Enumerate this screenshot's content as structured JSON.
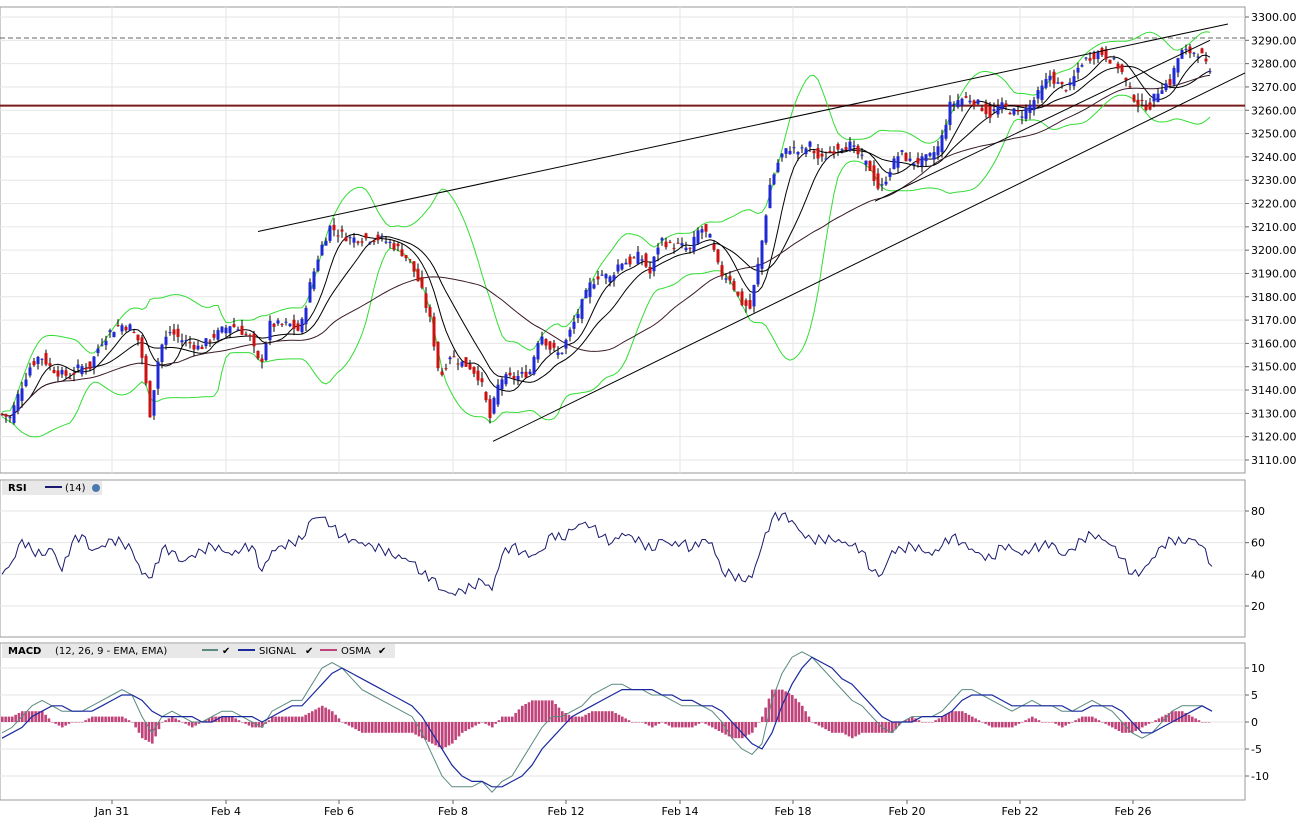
{
  "chart_data": [
    {
      "type": "candlestick",
      "panel": "price",
      "ylim": [
        3105,
        3300
      ],
      "y_ticks": [
        "3300.00",
        "3290.00",
        "3280.00",
        "3270.00",
        "3260.00",
        "3250.00",
        "3240.00",
        "3230.00",
        "3220.00",
        "3210.00",
        "3200.00",
        "3190.00",
        "3180.00",
        "3170.00",
        "3160.00",
        "3150.00",
        "3140.00",
        "3130.00",
        "3120.00",
        "3110.00"
      ],
      "x_ticks": [
        "Jan 31",
        "Feb 4",
        "Feb 6",
        "Feb 8",
        "Feb 12",
        "Feb 14",
        "Feb 18",
        "Feb 20",
        "Feb 22",
        "Feb 26"
      ],
      "close_path": [
        [
          0,
          3130
        ],
        [
          10,
          3128
        ],
        [
          20,
          3140
        ],
        [
          30,
          3150
        ],
        [
          40,
          3155
        ],
        [
          50,
          3150
        ],
        [
          60,
          3147
        ],
        [
          70,
          3146
        ],
        [
          80,
          3150
        ],
        [
          90,
          3150
        ],
        [
          100,
          3160
        ],
        [
          110,
          3165
        ],
        [
          120,
          3168
        ],
        [
          130,
          3167
        ],
        [
          140,
          3160
        ],
        [
          150,
          3130
        ],
        [
          160,
          3158
        ],
        [
          170,
          3165
        ],
        [
          180,
          3162
        ],
        [
          190,
          3160
        ],
        [
          200,
          3158
        ],
        [
          210,
          3162
        ],
        [
          220,
          3165
        ],
        [
          230,
          3168
        ],
        [
          240,
          3166
        ],
        [
          250,
          3162
        ],
        [
          260,
          3150
        ],
        [
          270,
          3168
        ],
        [
          280,
          3168
        ],
        [
          290,
          3168
        ],
        [
          300,
          3165
        ],
        [
          310,
          3185
        ],
        [
          320,
          3200
        ],
        [
          330,
          3210
        ],
        [
          340,
          3207
        ],
        [
          350,
          3205
        ],
        [
          360,
          3205
        ],
        [
          370,
          3205
        ],
        [
          380,
          3205
        ],
        [
          390,
          3203
        ],
        [
          400,
          3200
        ],
        [
          410,
          3195
        ],
        [
          420,
          3185
        ],
        [
          430,
          3170
        ],
        [
          440,
          3145
        ],
        [
          450,
          3155
        ],
        [
          460,
          3152
        ],
        [
          470,
          3150
        ],
        [
          480,
          3145
        ],
        [
          490,
          3128
        ],
        [
          500,
          3145
        ],
        [
          510,
          3145
        ],
        [
          520,
          3146
        ],
        [
          530,
          3148
        ],
        [
          540,
          3165
        ],
        [
          550,
          3158
        ],
        [
          560,
          3155
        ],
        [
          570,
          3165
        ],
        [
          580,
          3175
        ],
        [
          590,
          3185
        ],
        [
          600,
          3190
        ],
        [
          610,
          3188
        ],
        [
          620,
          3195
        ],
        [
          630,
          3195
        ],
        [
          640,
          3198
        ],
        [
          650,
          3190
        ],
        [
          660,
          3205
        ],
        [
          670,
          3202
        ],
        [
          680,
          3202
        ],
        [
          690,
          3200
        ],
        [
          700,
          3210
        ],
        [
          710,
          3205
        ],
        [
          720,
          3190
        ],
        [
          730,
          3188
        ],
        [
          740,
          3178
        ],
        [
          750,
          3175
        ],
        [
          760,
          3198
        ],
        [
          770,
          3228
        ],
        [
          780,
          3240
        ],
        [
          790,
          3244
        ],
        [
          800,
          3242
        ],
        [
          810,
          3245
        ],
        [
          820,
          3238
        ],
        [
          830,
          3242
        ],
        [
          840,
          3245
        ],
        [
          850,
          3245
        ],
        [
          860,
          3240
        ],
        [
          870,
          3235
        ],
        [
          880,
          3225
        ],
        [
          890,
          3235
        ],
        [
          900,
          3242
        ],
        [
          910,
          3238
        ],
        [
          920,
          3238
        ],
        [
          930,
          3240
        ],
        [
          940,
          3245
        ],
        [
          950,
          3262
        ],
        [
          960,
          3265
        ],
        [
          970,
          3265
        ],
        [
          980,
          3262
        ],
        [
          990,
          3258
        ],
        [
          1000,
          3262
        ],
        [
          1010,
          3260
        ],
        [
          1020,
          3258
        ],
        [
          1030,
          3262
        ],
        [
          1040,
          3268
        ],
        [
          1050,
          3275
        ],
        [
          1060,
          3270
        ],
        [
          1070,
          3270
        ],
        [
          1080,
          3280
        ],
        [
          1090,
          3283
        ],
        [
          1100,
          3285
        ],
        [
          1110,
          3282
        ],
        [
          1120,
          3278
        ],
        [
          1130,
          3268
        ],
        [
          1140,
          3262
        ],
        [
          1150,
          3262
        ],
        [
          1160,
          3270
        ],
        [
          1170,
          3272
        ],
        [
          1180,
          3285
        ],
        [
          1190,
          3285
        ],
        [
          1200,
          3285
        ],
        [
          1210,
          3275
        ]
      ],
      "horizontal_lines": [
        {
          "y": 3291,
          "style": "dashed",
          "color": "#666666"
        },
        {
          "y": 3262,
          "style": "solid",
          "color": "#7a1a1a"
        }
      ],
      "trend_lines": [
        {
          "from": [
            258,
            3208
          ],
          "to": [
            1228,
            3297
          ]
        },
        {
          "from": [
            493,
            3118
          ],
          "to": [
            1245,
            3276
          ]
        },
        {
          "from": [
            875,
            3221
          ],
          "to": [
            1210,
            3290
          ]
        }
      ],
      "colors": {
        "up": "#1f2ad6",
        "down": "#cc1111",
        "bollinger": "#33dd33",
        "ma": "#000000",
        "ma_long": "#3a1a2a"
      }
    },
    {
      "type": "line",
      "panel": "rsi",
      "legend": {
        "name": "RSI",
        "param": "(14)"
      },
      "ylim": [
        5,
        95
      ],
      "y_ticks": [
        "80",
        "60",
        "40",
        "20"
      ],
      "series": [
        {
          "name": "RSI",
          "color": "#1a1a6e",
          "values": [
            40,
            48,
            62,
            55,
            52,
            56,
            42,
            60,
            65,
            55,
            58,
            62,
            60,
            55,
            40,
            38,
            56,
            55,
            48,
            52,
            55,
            58,
            55,
            52,
            56,
            58,
            42,
            55,
            58,
            60,
            62,
            75,
            76,
            70,
            64,
            62,
            60,
            58,
            56,
            52,
            50,
            48,
            40,
            38,
            30,
            28,
            30,
            32,
            36,
            30,
            52,
            58,
            54,
            52,
            55,
            66,
            62,
            68,
            72,
            70,
            64,
            60,
            66,
            64,
            60,
            55,
            62,
            58,
            60,
            56,
            62,
            60,
            42,
            40,
            36,
            38,
            58,
            75,
            78,
            74,
            66,
            62,
            62,
            62,
            60,
            58,
            55,
            42,
            40,
            55,
            56,
            58,
            55,
            52,
            58,
            64,
            60,
            56,
            52,
            50,
            58,
            56,
            52,
            56,
            58,
            60,
            52,
            56,
            62,
            65,
            62,
            58,
            50,
            40,
            42,
            50,
            58,
            62,
            60,
            62,
            58,
            45
          ]
        }
      ]
    },
    {
      "type": "line",
      "panel": "macd",
      "legend": {
        "name": "MACD",
        "param": "(12, 26, 9 - EMA, EMA)",
        "signal": "SIGNAL",
        "osma": "OSMA"
      },
      "ylim": [
        -14,
        14
      ],
      "y_ticks": [
        "10",
        "5",
        "0",
        "-5",
        "-10"
      ],
      "series": [
        {
          "name": "MACD",
          "color": "#5a8a80",
          "values": [
            -2,
            -1,
            1,
            3,
            4,
            3,
            2,
            2,
            2,
            3,
            4,
            5,
            6,
            5,
            1,
            -2,
            1,
            2,
            1,
            0,
            0,
            1,
            2,
            2,
            1,
            0,
            -1,
            2,
            3,
            4,
            4,
            7,
            10,
            11,
            10,
            8,
            6,
            5,
            4,
            3,
            2,
            1,
            -2,
            -6,
            -10,
            -12,
            -12,
            -12,
            -11,
            -13,
            -11,
            -10,
            -7,
            -4,
            -1,
            1,
            1,
            2,
            3,
            5,
            6,
            7,
            7,
            6,
            6,
            5,
            5,
            4,
            3,
            3,
            3,
            2,
            0,
            -3,
            -5,
            -6,
            -4,
            4,
            9,
            12,
            13,
            12,
            10,
            8,
            6,
            4,
            3,
            1,
            -1,
            -2,
            0,
            1,
            1,
            1,
            2,
            4,
            6,
            6,
            5,
            4,
            3,
            2,
            3,
            4,
            3,
            3,
            2,
            2,
            3,
            4,
            3,
            2,
            0,
            -2,
            -3,
            -2,
            0,
            2,
            3,
            3,
            3,
            2
          ]
        },
        {
          "name": "SIGNAL",
          "color": "#1a2a9e",
          "values": [
            -3,
            -2,
            -1,
            1,
            2,
            3,
            3,
            2,
            2,
            2,
            3,
            4,
            5,
            5,
            4,
            2,
            1,
            1,
            1,
            1,
            0,
            0,
            1,
            1,
            1,
            1,
            0,
            1,
            2,
            3,
            3,
            5,
            7,
            9,
            10,
            9,
            8,
            7,
            6,
            5,
            4,
            3,
            1,
            -2,
            -5,
            -8,
            -10,
            -11,
            -11,
            -12,
            -12,
            -11,
            -10,
            -8,
            -5,
            -3,
            -1,
            1,
            2,
            3,
            4,
            5,
            6,
            6,
            6,
            6,
            5,
            5,
            4,
            4,
            3,
            3,
            2,
            0,
            -2,
            -4,
            -5,
            -2,
            3,
            7,
            10,
            12,
            11,
            10,
            8,
            7,
            5,
            3,
            1,
            0,
            0,
            0,
            1,
            1,
            1,
            2,
            4,
            5,
            5,
            5,
            4,
            3,
            3,
            3,
            3,
            3,
            3,
            2,
            2,
            3,
            3,
            3,
            2,
            0,
            -2,
            -2,
            -1,
            0,
            1,
            2,
            3,
            2
          ]
        },
        {
          "name": "OSMA",
          "color": "#c0447a",
          "values": [
            1,
            1,
            2,
            2,
            2,
            0,
            -1,
            0,
            0,
            1,
            1,
            1,
            1,
            0,
            -3,
            -4,
            0,
            1,
            0,
            -1,
            0,
            1,
            1,
            1,
            0,
            -1,
            -1,
            1,
            1,
            1,
            1,
            2,
            3,
            2,
            0,
            -1,
            -2,
            -2,
            -2,
            -2,
            -2,
            -2,
            -3,
            -4,
            -5,
            -4,
            -2,
            -1,
            0,
            -1,
            1,
            1,
            3,
            4,
            4,
            4,
            2,
            1,
            1,
            2,
            2,
            2,
            1,
            0,
            0,
            -1,
            0,
            -1,
            -1,
            -1,
            0,
            -1,
            -2,
            -3,
            -3,
            -2,
            1,
            6,
            6,
            5,
            3,
            0,
            -1,
            -2,
            -2,
            -3,
            -2,
            -2,
            -2,
            -2,
            0,
            1,
            0,
            0,
            1,
            2,
            2,
            1,
            0,
            -1,
            -1,
            -1,
            0,
            1,
            0,
            0,
            -1,
            0,
            1,
            1,
            0,
            -1,
            -2,
            -2,
            -1,
            0,
            1,
            2,
            2,
            1,
            0,
            0
          ]
        }
      ]
    }
  ]
}
